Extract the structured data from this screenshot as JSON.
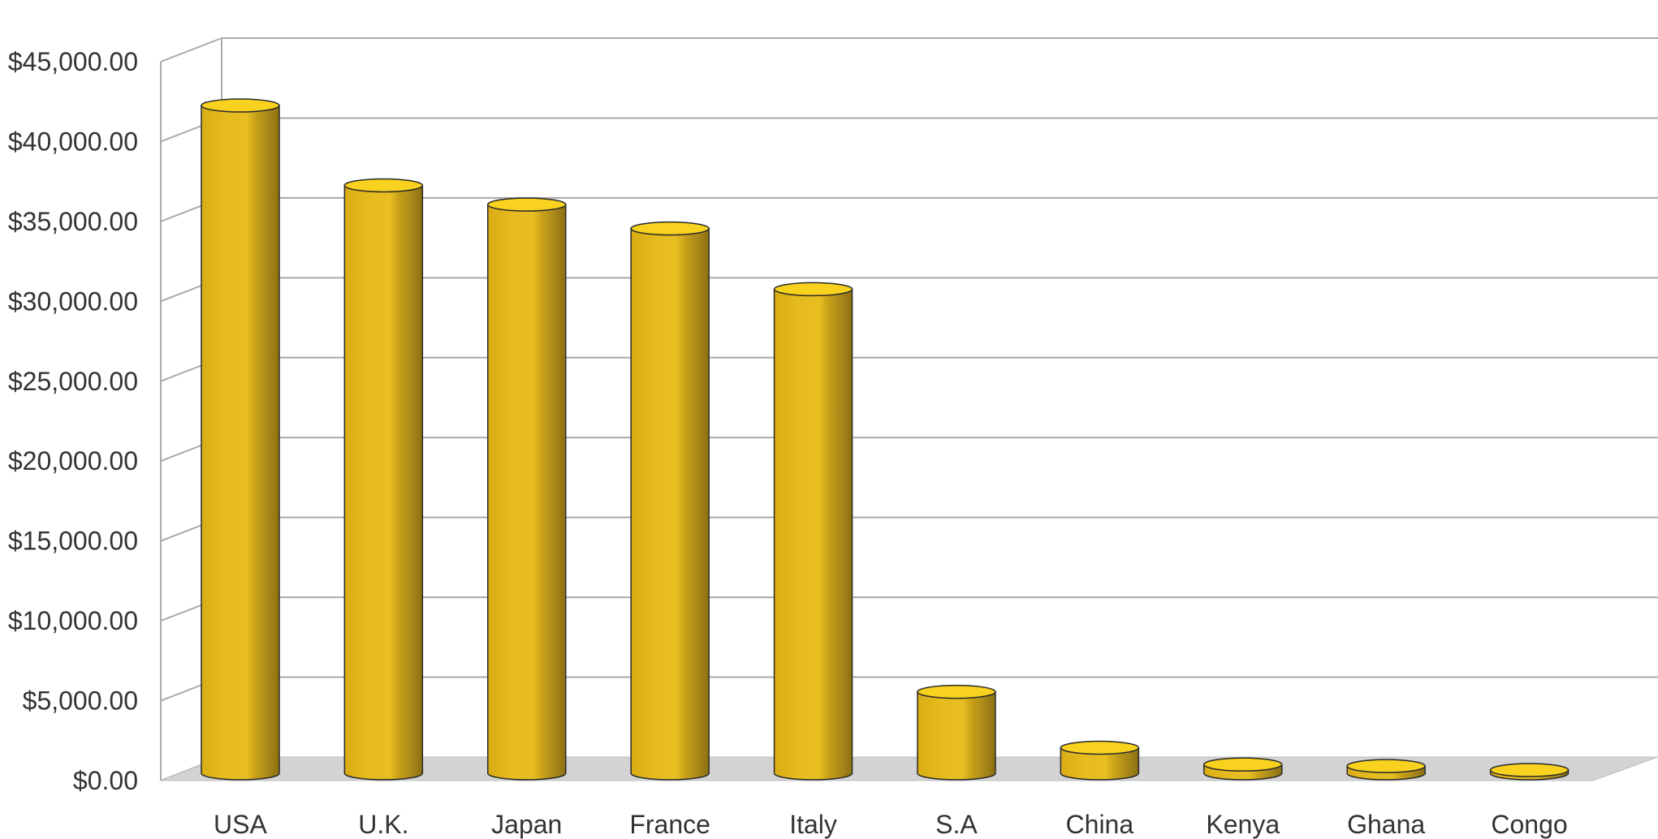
{
  "chart_data": {
    "type": "bar",
    "style": "3d-cylinder",
    "title": "",
    "xlabel": "",
    "ylabel": "",
    "categories": [
      "USA",
      "U.K.",
      "Japan",
      "France",
      "Italy",
      "S.A",
      "China",
      "Kenya",
      "Ghana",
      "Congo"
    ],
    "values": [
      41800,
      36800,
      35600,
      34100,
      30300,
      5100,
      1600,
      550,
      450,
      200
    ],
    "ylim": [
      0,
      45000
    ],
    "ytick_step": 5000,
    "ytick_labels": [
      "$0.00",
      "$5,000.00",
      "$10,000.00",
      "$15,000.00",
      "$20,000.00",
      "$25,000.00",
      "$30,000.00",
      "$35,000.00",
      "$40,000.00",
      "$45,000.00"
    ],
    "grid": true,
    "legend": "none",
    "colors": {
      "bar_front": "#e2b81c",
      "bar_highlight": "#f0ca2e",
      "bar_shade": "#a18314",
      "bar_top": "#f8d21e",
      "floor": "#d3d3d3",
      "grid": "#aaaaaa"
    }
  }
}
